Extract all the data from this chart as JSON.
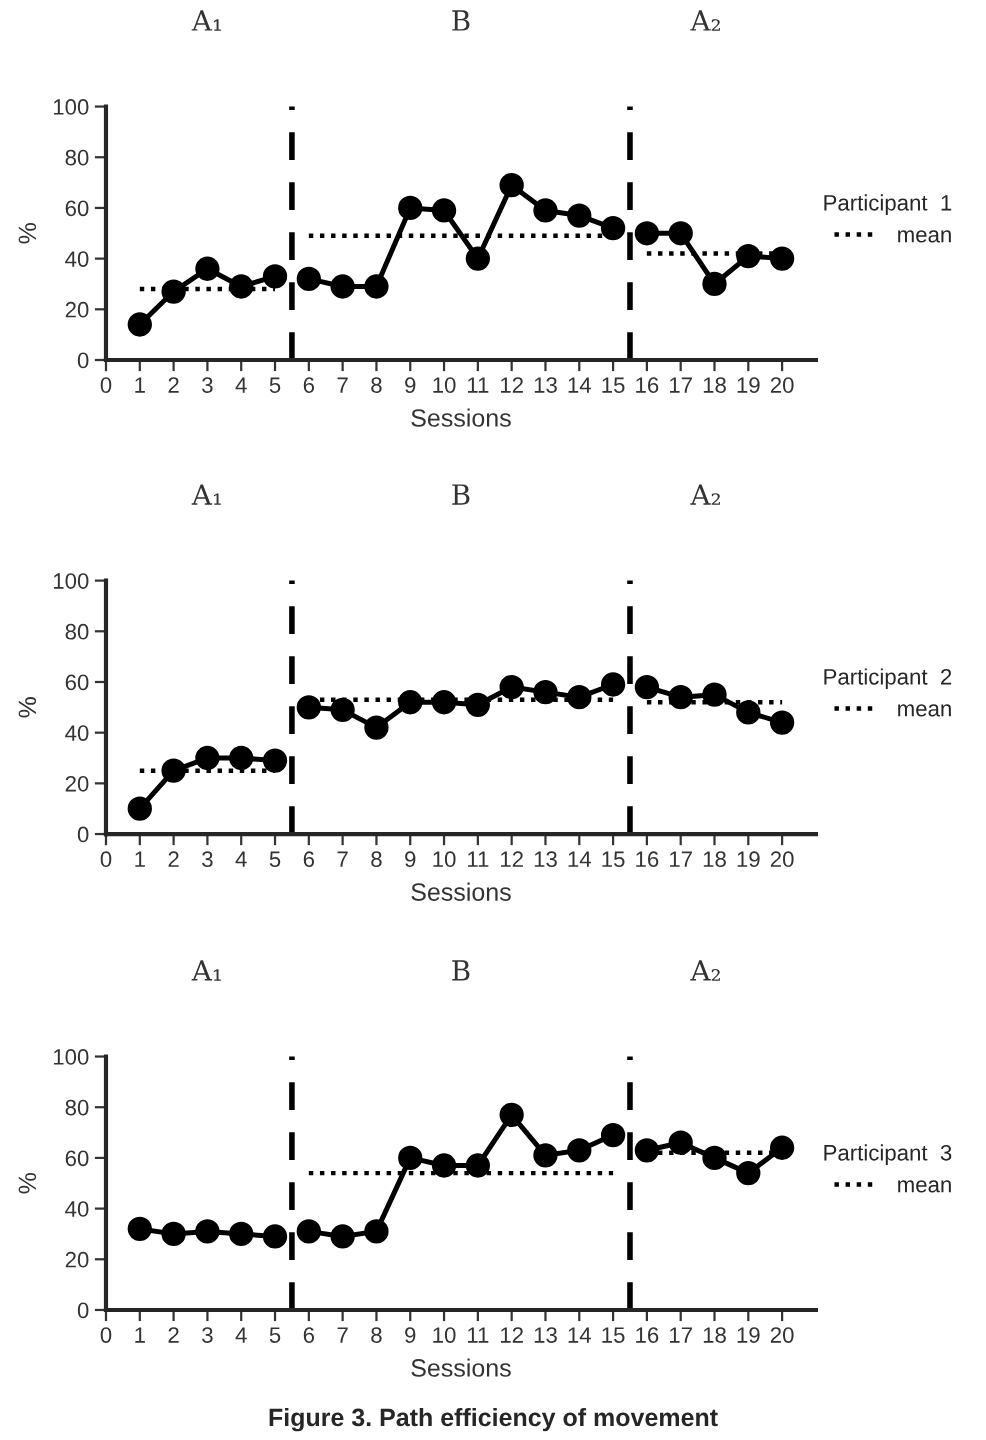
{
  "chart_data": [
    {
      "type": "line",
      "xlabel": "Sessions",
      "ylabel": "%",
      "legend_title": "Participant  1",
      "legend": "right",
      "grid": false,
      "marker": "circle",
      "line_style": "solid",
      "xlim": [
        0,
        21
      ],
      "xticks": [
        0,
        1,
        2,
        3,
        4,
        5,
        6,
        7,
        8,
        9,
        10,
        11,
        12,
        13,
        14,
        15,
        16,
        17,
        18,
        19,
        20
      ],
      "ylim": [
        0,
        100
      ],
      "yticks": [
        0,
        20,
        40,
        60,
        80,
        100
      ],
      "annotations": [
        "A₁",
        "B",
        "A₂"
      ],
      "ref_lines": [
        {
          "axis": "x",
          "value": 5.5,
          "line_style": "dashed",
          "color": "#000000"
        },
        {
          "axis": "x",
          "value": 15.5,
          "line_style": "dashed",
          "color": "#000000"
        }
      ],
      "series": [
        {
          "color": "#000000",
          "x": [
            1,
            2,
            3,
            4,
            5
          ],
          "values": [
            14,
            27,
            36,
            29,
            33
          ]
        },
        {
          "color": "#000000",
          "x": [
            6,
            7,
            8,
            9,
            10,
            11,
            12,
            13,
            14,
            15
          ],
          "values": [
            32,
            29,
            29,
            60,
            59,
            40,
            69,
            59,
            57,
            52
          ]
        },
        {
          "color": "#000000",
          "x": [
            16,
            17,
            18,
            19,
            20
          ],
          "values": [
            50,
            50,
            30,
            41,
            40
          ]
        },
        {
          "name": "mean",
          "color": "#000000",
          "marker": "none",
          "line_style": "dotted",
          "x": [
            1,
            5
          ],
          "values": [
            28,
            28
          ]
        },
        {
          "color": "#000000",
          "marker": "none",
          "line_style": "dotted",
          "x": [
            6,
            15
          ],
          "values": [
            49,
            49
          ]
        },
        {
          "color": "#000000",
          "marker": "none",
          "line_style": "dotted",
          "x": [
            16,
            20
          ],
          "values": [
            42,
            42
          ]
        }
      ]
    },
    {
      "type": "line",
      "xlabel": "Sessions",
      "ylabel": "%",
      "legend_title": "Participant  2",
      "legend": "right",
      "grid": false,
      "marker": "circle",
      "line_style": "solid",
      "xlim": [
        0,
        21
      ],
      "xticks": [
        0,
        1,
        2,
        3,
        4,
        5,
        6,
        7,
        8,
        9,
        10,
        11,
        12,
        13,
        14,
        15,
        16,
        17,
        18,
        19,
        20
      ],
      "ylim": [
        0,
        100
      ],
      "yticks": [
        0,
        20,
        40,
        60,
        80,
        100
      ],
      "annotations": [
        "A₁",
        "B",
        "A₂"
      ],
      "ref_lines": [
        {
          "axis": "x",
          "value": 5.5,
          "line_style": "dashed",
          "color": "#000000"
        },
        {
          "axis": "x",
          "value": 15.5,
          "line_style": "dashed",
          "color": "#000000"
        }
      ],
      "series": [
        {
          "color": "#000000",
          "x": [
            1,
            2,
            3,
            4,
            5
          ],
          "values": [
            10,
            25,
            30,
            30,
            29
          ]
        },
        {
          "color": "#000000",
          "x": [
            6,
            7,
            8,
            9,
            10,
            11,
            12,
            13,
            14,
            15
          ],
          "values": [
            50,
            49,
            42,
            52,
            52,
            51,
            58,
            56,
            54,
            59
          ]
        },
        {
          "color": "#000000",
          "x": [
            16,
            17,
            18,
            19,
            20
          ],
          "values": [
            58,
            54,
            55,
            48,
            44
          ]
        },
        {
          "name": "mean",
          "color": "#000000",
          "marker": "none",
          "line_style": "dotted",
          "x": [
            1,
            5
          ],
          "values": [
            25,
            25
          ]
        },
        {
          "color": "#000000",
          "marker": "none",
          "line_style": "dotted",
          "x": [
            6,
            15
          ],
          "values": [
            53,
            53
          ]
        },
        {
          "color": "#000000",
          "marker": "none",
          "line_style": "dotted",
          "x": [
            16,
            20
          ],
          "values": [
            52,
            52
          ]
        }
      ]
    },
    {
      "type": "line",
      "xlabel": "Sessions",
      "ylabel": "%",
      "legend_title": "Participant  3",
      "legend": "right",
      "grid": false,
      "marker": "circle",
      "line_style": "solid",
      "xlim": [
        0,
        21
      ],
      "xticks": [
        0,
        1,
        2,
        3,
        4,
        5,
        6,
        7,
        8,
        9,
        10,
        11,
        12,
        13,
        14,
        15,
        16,
        17,
        18,
        19,
        20
      ],
      "ylim": [
        0,
        100
      ],
      "yticks": [
        0,
        20,
        40,
        60,
        80,
        100
      ],
      "annotations": [
        "A₁",
        "B",
        "A₂",
        "Figure 3. Path efficiency of movement"
      ],
      "ref_lines": [
        {
          "axis": "x",
          "value": 5.5,
          "line_style": "dashed",
          "color": "#000000"
        },
        {
          "axis": "x",
          "value": 15.5,
          "line_style": "dashed",
          "color": "#000000"
        }
      ],
      "series": [
        {
          "color": "#000000",
          "x": [
            1,
            2,
            3,
            4,
            5
          ],
          "values": [
            32,
            30,
            31,
            30,
            29
          ]
        },
        {
          "color": "#000000",
          "x": [
            6,
            7,
            8,
            9,
            10,
            11,
            12,
            13,
            14,
            15
          ],
          "values": [
            31,
            29,
            31,
            60,
            57,
            57,
            77,
            61,
            63,
            69
          ]
        },
        {
          "color": "#000000",
          "x": [
            16,
            17,
            18,
            19,
            20
          ],
          "values": [
            63,
            66,
            60,
            54,
            64
          ]
        },
        {
          "name": "mean",
          "color": "#000000",
          "marker": "none",
          "line_style": "dotted",
          "x": [
            6,
            15
          ],
          "values": [
            54,
            54
          ]
        },
        {
          "color": "#000000",
          "marker": "none",
          "line_style": "dotted",
          "x": [
            16,
            20
          ],
          "values": [
            62,
            62
          ]
        }
      ]
    }
  ]
}
